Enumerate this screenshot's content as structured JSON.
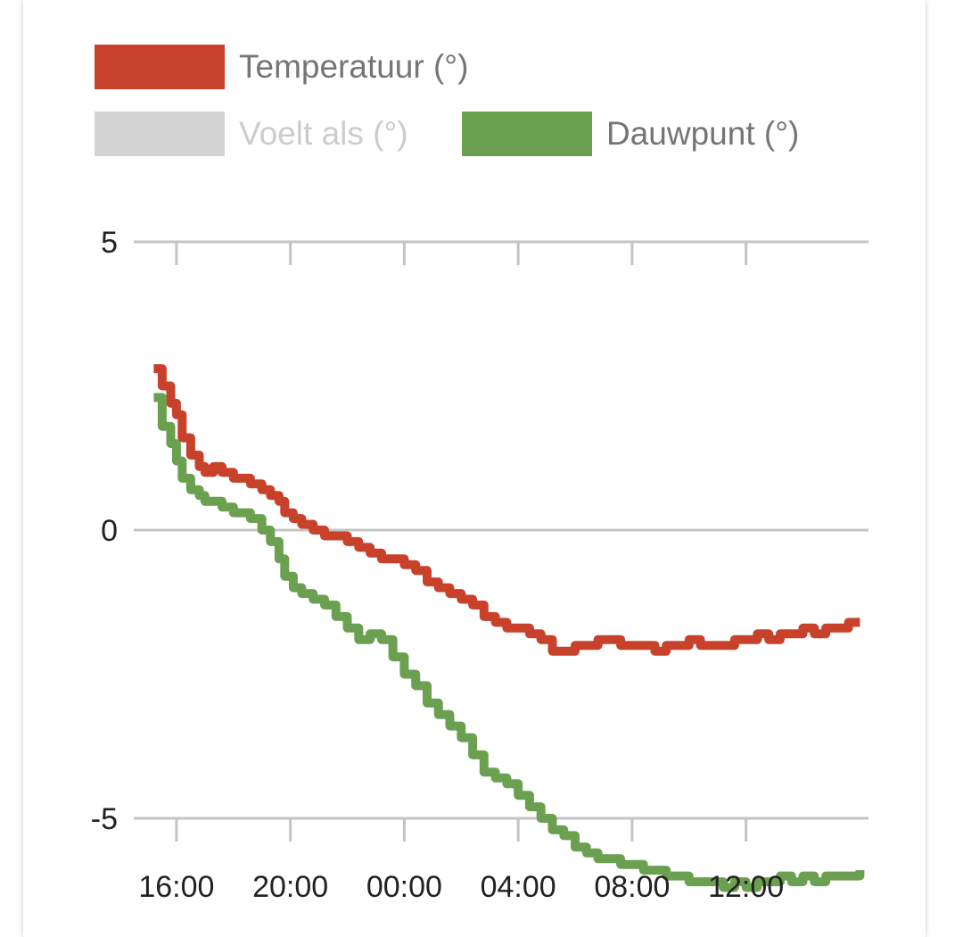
{
  "chart_data": {
    "type": "line",
    "ylim": [
      -5,
      5
    ],
    "yticks": [
      5,
      0,
      -5
    ],
    "xlim": [
      -1.5,
      24.3
    ],
    "xtick_labels": [
      "16:00",
      "20:00",
      "00:00",
      "04:00",
      "08:00",
      "12:00"
    ],
    "xtick_positions": [
      0,
      4,
      8,
      12,
      16,
      20
    ],
    "legend_placement": "top",
    "grid": true,
    "series": [
      {
        "name": "Temperatuur (°)",
        "color": "#c8412a",
        "enabled": true,
        "x": [
          -0.8,
          -0.5,
          -0.2,
          0.0,
          0.2,
          0.5,
          0.8,
          1.0,
          1.3,
          1.6,
          2.0,
          2.3,
          2.6,
          3.0,
          3.3,
          3.6,
          3.8,
          4.1,
          4.4,
          4.8,
          5.2,
          5.6,
          6.0,
          6.4,
          6.8,
          7.2,
          7.6,
          8.0,
          8.4,
          8.8,
          9.2,
          9.6,
          10.0,
          10.4,
          10.8,
          11.2,
          11.6,
          12.0,
          12.4,
          12.8,
          13.2,
          13.6,
          14.0,
          14.4,
          14.8,
          15.2,
          15.6,
          16.0,
          16.4,
          16.8,
          17.2,
          17.6,
          18.0,
          18.4,
          18.8,
          19.2,
          19.6,
          20.0,
          20.4,
          20.8,
          21.2,
          21.6,
          22.0,
          22.4,
          22.8,
          23.2,
          23.6,
          24.0
        ],
        "y": [
          2.8,
          2.5,
          2.2,
          2.0,
          1.6,
          1.3,
          1.1,
          1.0,
          1.1,
          1.0,
          0.9,
          0.9,
          0.8,
          0.7,
          0.6,
          0.5,
          0.3,
          0.2,
          0.1,
          0.0,
          -0.1,
          -0.1,
          -0.2,
          -0.3,
          -0.4,
          -0.5,
          -0.5,
          -0.6,
          -0.7,
          -0.9,
          -1.0,
          -1.1,
          -1.2,
          -1.3,
          -1.5,
          -1.6,
          -1.7,
          -1.7,
          -1.8,
          -1.9,
          -2.1,
          -2.1,
          -2.0,
          -2.0,
          -1.9,
          -1.9,
          -2.0,
          -2.0,
          -2.0,
          -2.1,
          -2.0,
          -2.0,
          -1.9,
          -2.0,
          -2.0,
          -2.0,
          -1.9,
          -1.9,
          -1.8,
          -1.9,
          -1.8,
          -1.8,
          -1.7,
          -1.8,
          -1.7,
          -1.7,
          -1.6,
          -1.6
        ]
      },
      {
        "name": "Voelt als (°)",
        "color": "#d3d3d3",
        "enabled": false,
        "x": [],
        "y": []
      },
      {
        "name": "Dauwpunt (°)",
        "color": "#6aa050",
        "enabled": true,
        "x": [
          -0.8,
          -0.5,
          -0.2,
          0.0,
          0.2,
          0.5,
          0.8,
          1.0,
          1.3,
          1.6,
          2.0,
          2.3,
          2.6,
          3.0,
          3.3,
          3.6,
          3.8,
          4.1,
          4.4,
          4.8,
          5.2,
          5.6,
          6.0,
          6.4,
          6.8,
          7.2,
          7.6,
          8.0,
          8.4,
          8.8,
          9.2,
          9.6,
          10.0,
          10.4,
          10.8,
          11.2,
          11.6,
          12.0,
          12.4,
          12.8,
          13.2,
          13.6,
          14.0,
          14.4,
          14.8,
          15.2,
          15.6,
          16.0,
          16.4,
          16.8,
          17.2,
          17.6,
          18.0,
          18.4,
          18.8,
          19.2,
          19.6,
          20.0,
          20.4,
          20.8,
          21.2,
          21.6,
          22.0,
          22.4,
          22.8,
          23.2,
          23.6,
          24.0
        ],
        "y": [
          2.3,
          1.8,
          1.5,
          1.2,
          0.9,
          0.7,
          0.6,
          0.5,
          0.5,
          0.4,
          0.3,
          0.3,
          0.2,
          0.0,
          -0.2,
          -0.5,
          -0.8,
          -1.0,
          -1.1,
          -1.2,
          -1.3,
          -1.5,
          -1.7,
          -1.9,
          -1.8,
          -1.9,
          -2.2,
          -2.5,
          -2.7,
          -3.0,
          -3.2,
          -3.4,
          -3.6,
          -3.9,
          -4.2,
          -4.3,
          -4.4,
          -4.6,
          -4.8,
          -5.0,
          -5.2,
          -5.3,
          -5.5,
          -5.6,
          -5.7,
          -5.7,
          -5.8,
          -5.8,
          -5.9,
          -5.9,
          -6.0,
          -6.0,
          -6.1,
          -6.1,
          -6.1,
          -6.2,
          -6.1,
          -6.2,
          -6.1,
          -6.1,
          -6.0,
          -6.1,
          -6.0,
          -6.1,
          -6.0,
          -6.0,
          -6.0,
          -5.9
        ]
      }
    ]
  }
}
